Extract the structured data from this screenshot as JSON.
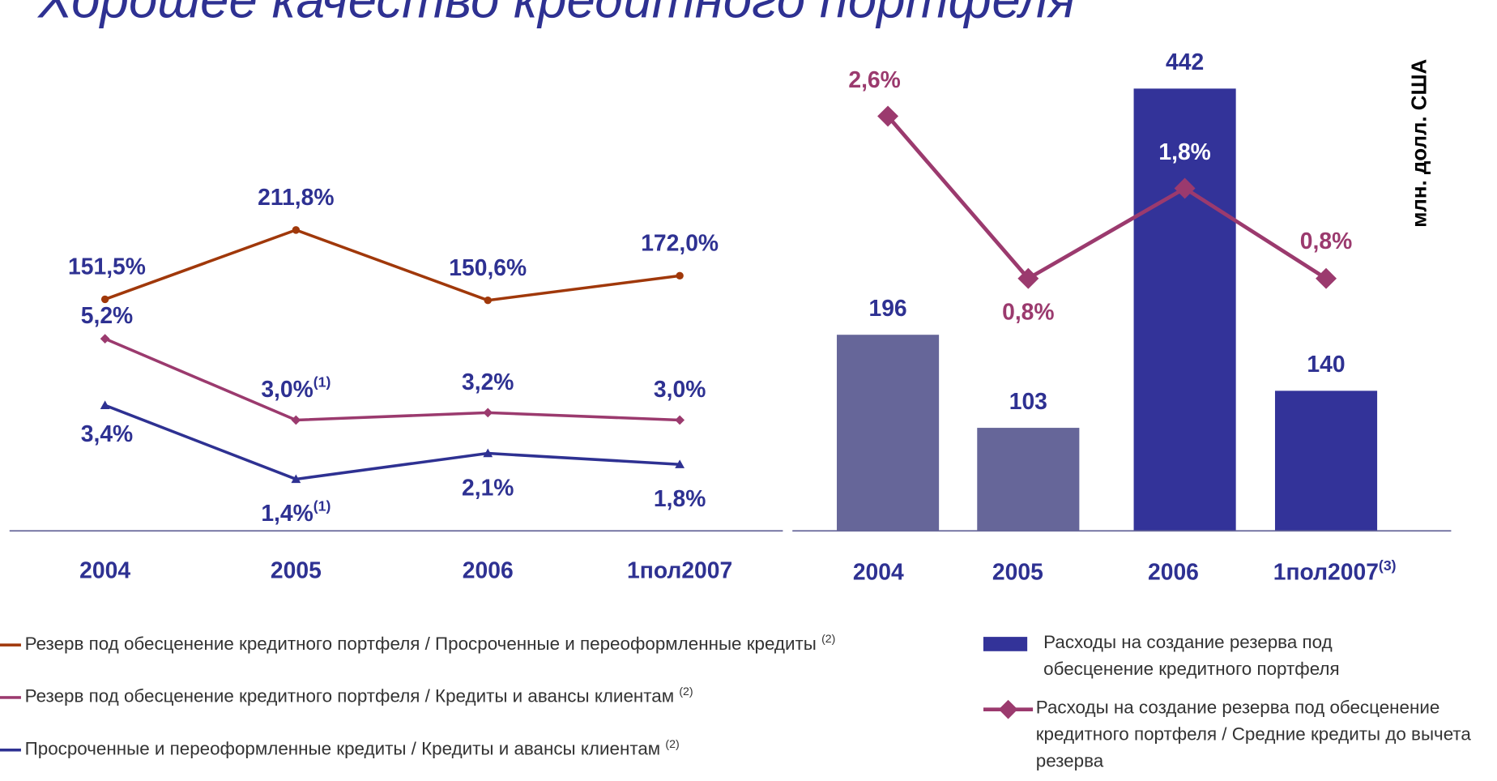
{
  "title": "Хорошее качество кредитного портфеля",
  "chart_data": [
    {
      "type": "line",
      "categories": [
        "2004",
        "2005",
        "2006",
        "1пол2007"
      ],
      "ylim": [
        0,
        8.4
      ],
      "y2lim": [
        -50,
        220
      ],
      "series": [
        {
          "name": "Резерв под обесценение кредитного портфеля / Просроченные и переоформленные кредиты",
          "note": "(2)",
          "color": "#a0380a",
          "marker": "circle",
          "axis": "y2",
          "values": [
            151.5,
            211.8,
            150.6,
            172.0
          ],
          "value_labels": [
            "151,5%",
            "211,8%",
            "150,6%",
            "172,0%"
          ]
        },
        {
          "name": "Резерв под обесценение кредитного портфеля / Кредиты и авансы клиентам",
          "note": "(2)",
          "color": "#9b3a6e",
          "marker": "diamond",
          "values": [
            5.2,
            3.0,
            3.2,
            3.0
          ],
          "value_labels": [
            "5,2%",
            "3,0%",
            "3,2%",
            "3,0%"
          ],
          "value_label_notes": [
            null,
            "(1)",
            null,
            null
          ]
        },
        {
          "name": "Просроченные и переоформленные кредиты / Кредиты и авансы клиентам",
          "note": "(2)",
          "color": "#2e3192",
          "marker": "triangle",
          "values": [
            3.4,
            1.4,
            2.1,
            1.8
          ],
          "value_labels": [
            "3,4%",
            "1,4%",
            "2,1%",
            "1,8%"
          ],
          "value_label_notes": [
            null,
            "(1)",
            null,
            null
          ]
        }
      ]
    },
    {
      "type": "bar_line",
      "y_axis_label": "млн. долл. США",
      "categories": [
        "2004",
        "2005",
        "2006",
        "1пол2007"
      ],
      "category_notes": [
        null,
        null,
        null,
        "(3)"
      ],
      "ylim": [
        0,
        500
      ],
      "y2lim": [
        -2,
        3.55
      ],
      "series": [
        {
          "name": "Расходы на создание резерва под обесценение кредитного портфеля",
          "type": "bar",
          "color": "#333399",
          "colors": [
            "#666699",
            "#666699",
            "#333399",
            "#333399"
          ],
          "values": [
            196,
            103,
            442,
            140
          ]
        },
        {
          "name": "Расходы на создание резерва под обесценение кредитного портфеля / Средние кредиты до вычета резерва",
          "type": "line",
          "axis": "y2",
          "color": "#9b3a6e",
          "marker": "diamond",
          "values": [
            2.6,
            0.8,
            1.8,
            0.8
          ],
          "value_labels": [
            "2,6%",
            "0,8%",
            "1,8%",
            "0,8%"
          ]
        }
      ]
    }
  ]
}
